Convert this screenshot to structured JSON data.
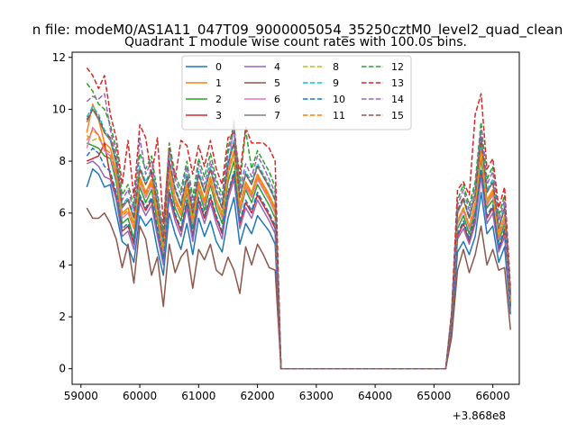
{
  "chart_data": {
    "type": "line",
    "suptitle": "n file: modeM0/AS1A11_047T09_9000005054_35250cztM0_level2_quad_clean",
    "title": "Quadrant 1 module wise count rates with 100.0s bins.",
    "xlabel": "",
    "ylabel": "",
    "x_offset_label": "+3.868e8",
    "xlim": [
      58850,
      66450
    ],
    "ylim": [
      -0.6,
      12.2
    ],
    "xticks": [
      59000,
      60000,
      61000,
      62000,
      63000,
      64000,
      65000,
      66000
    ],
    "yticks": [
      0,
      2,
      4,
      6,
      8,
      10,
      12
    ],
    "grid": false,
    "legend": {
      "placement": "top-center",
      "ncol": 4
    },
    "segment1_x": [
      59100,
      59200,
      59300,
      59400,
      59500,
      59600,
      59700,
      59800,
      59900,
      60000,
      60100,
      60200,
      60300,
      60400,
      60500,
      60600,
      60700,
      60800,
      60900,
      61000,
      61100,
      61200,
      61300,
      61400,
      61500,
      61600,
      61700,
      61800,
      61900,
      62000,
      62100,
      62200,
      62300
    ],
    "drop_x": [
      62400,
      65200
    ],
    "segment2_x": [
      65300,
      65400,
      65500,
      65600,
      65700,
      65800,
      65900,
      66000,
      66100,
      66200,
      66300
    ],
    "series": [
      {
        "name": "0",
        "color": "#1f77b4",
        "dash": false,
        "seg1": [
          7.0,
          7.7,
          7.5,
          7.0,
          7.1,
          6.0,
          4.9,
          4.7,
          4.1,
          5.9,
          5.5,
          5.8,
          4.6,
          3.6,
          6.0,
          5.2,
          4.6,
          5.6,
          4.4,
          5.8,
          5.1,
          5.7,
          4.9,
          4.5,
          5.8,
          6.6,
          4.8,
          5.6,
          5.2,
          5.9,
          5.6,
          5.3,
          4.8
        ],
        "seg2": [
          1.5,
          4.5,
          4.9,
          4.4,
          5.1,
          6.8,
          5.2,
          5.5,
          4.1,
          4.7,
          2.1
        ]
      },
      {
        "name": "1",
        "color": "#ff7f0e",
        "dash": false,
        "seg1": [
          9.1,
          10.2,
          9.6,
          8.7,
          8.5,
          7.6,
          6.0,
          6.2,
          5.6,
          7.4,
          6.8,
          7.3,
          6.1,
          4.6,
          7.7,
          6.6,
          6.1,
          7.1,
          5.8,
          7.2,
          6.5,
          7.4,
          6.5,
          6.0,
          7.6,
          8.4,
          6.3,
          7.2,
          6.8,
          7.5,
          7.1,
          6.7,
          6.2
        ],
        "seg2": [
          1.9,
          5.7,
          6.2,
          5.5,
          6.4,
          8.5,
          6.5,
          6.9,
          5.2,
          5.9,
          2.6
        ]
      },
      {
        "name": "2",
        "color": "#2ca02c",
        "dash": false,
        "seg1": [
          8.7,
          8.6,
          8.5,
          8.2,
          8.1,
          7.2,
          5.6,
          5.8,
          5.0,
          7.0,
          6.4,
          6.9,
          5.7,
          4.4,
          7.3,
          6.2,
          5.7,
          6.8,
          5.4,
          6.9,
          6.1,
          7.1,
          6.2,
          5.6,
          7.2,
          8.0,
          6.0,
          6.9,
          6.4,
          7.1,
          6.7,
          6.3,
          5.8
        ],
        "seg2": [
          1.8,
          5.4,
          5.9,
          5.2,
          6.1,
          8.1,
          6.2,
          6.5,
          4.9,
          5.6,
          2.5
        ]
      },
      {
        "name": "3",
        "color": "#d62728",
        "dash": false,
        "seg1": [
          8.0,
          8.1,
          8.2,
          8.7,
          7.4,
          6.7,
          5.3,
          5.5,
          4.8,
          6.6,
          6.1,
          6.5,
          5.3,
          4.1,
          6.8,
          5.9,
          5.3,
          6.4,
          5.1,
          6.5,
          5.8,
          6.6,
          5.8,
          5.2,
          6.7,
          7.5,
          5.6,
          6.4,
          6.0,
          6.7,
          6.3,
          5.9,
          5.4
        ],
        "seg2": [
          1.7,
          5.1,
          5.6,
          4.9,
          5.8,
          7.6,
          5.8,
          6.2,
          4.6,
          5.3,
          2.4
        ]
      },
      {
        "name": "4",
        "color": "#9467bd",
        "dash": false,
        "seg1": [
          7.9,
          8.0,
          7.8,
          7.4,
          7.3,
          6.5,
          5.1,
          5.3,
          4.6,
          6.4,
          5.9,
          6.3,
          5.1,
          4.0,
          6.6,
          5.7,
          5.1,
          6.2,
          4.9,
          6.3,
          5.6,
          6.4,
          5.6,
          5.0,
          6.5,
          7.3,
          5.4,
          6.2,
          5.8,
          6.5,
          6.1,
          5.7,
          5.2
        ],
        "seg2": [
          1.6,
          5.0,
          5.4,
          4.8,
          5.6,
          7.4,
          5.6,
          6.0,
          4.5,
          5.1,
          2.3
        ]
      },
      {
        "name": "5",
        "color": "#8c564b",
        "dash": false,
        "seg1": [
          6.2,
          5.8,
          5.8,
          6.0,
          5.6,
          5.0,
          3.9,
          4.8,
          3.3,
          5.5,
          5.0,
          3.6,
          4.3,
          2.4,
          4.8,
          3.7,
          4.3,
          4.6,
          3.1,
          4.6,
          4.2,
          4.8,
          3.8,
          3.6,
          4.3,
          3.8,
          2.9,
          4.7,
          4.0,
          4.8,
          4.4,
          3.9,
          3.8
        ],
        "seg2": [
          1.2,
          3.8,
          4.6,
          3.7,
          4.4,
          5.5,
          4.0,
          4.6,
          3.8,
          3.9,
          1.5
        ]
      },
      {
        "name": "6",
        "color": "#e377c2",
        "dash": false,
        "seg1": [
          8.5,
          9.3,
          9.0,
          8.4,
          8.2,
          7.4,
          5.8,
          6.0,
          5.4,
          7.2,
          6.6,
          7.1,
          5.9,
          4.5,
          7.5,
          6.4,
          5.9,
          6.9,
          5.6,
          7.0,
          6.3,
          7.2,
          6.4,
          5.8,
          7.4,
          9.6,
          6.1,
          7.0,
          6.6,
          7.3,
          6.9,
          6.5,
          6.0
        ],
        "seg2": [
          1.8,
          5.6,
          6.1,
          5.4,
          6.2,
          8.3,
          6.3,
          6.7,
          5.0,
          5.8,
          2.6
        ]
      },
      {
        "name": "7",
        "color": "#7f7f7f",
        "dash": false,
        "seg1": [
          9.5,
          10.0,
          9.6,
          9.1,
          8.8,
          7.9,
          6.2,
          6.5,
          5.8,
          7.7,
          7.1,
          7.6,
          6.3,
          4.9,
          8.0,
          6.9,
          6.3,
          7.4,
          6.0,
          7.5,
          6.8,
          7.7,
          6.8,
          6.2,
          7.9,
          8.7,
          6.6,
          7.5,
          7.1,
          7.8,
          7.4,
          7.0,
          6.5
        ],
        "seg2": [
          2.0,
          6.0,
          6.5,
          5.8,
          6.7,
          8.8,
          6.8,
          7.2,
          5.4,
          6.2,
          2.8
        ]
      },
      {
        "name": "8",
        "color": "#bcbd22",
        "dash": true,
        "seg1": [
          9.0,
          8.8,
          8.9,
          8.5,
          8.3,
          7.5,
          5.9,
          6.1,
          5.5,
          7.3,
          6.7,
          7.2,
          6.0,
          4.6,
          7.6,
          6.5,
          6.0,
          7.0,
          5.7,
          7.1,
          6.4,
          7.3,
          6.5,
          5.9,
          7.5,
          8.3,
          6.2,
          7.1,
          6.7,
          7.4,
          7.0,
          6.6,
          6.1
        ],
        "seg2": [
          1.9,
          5.7,
          6.2,
          5.5,
          6.3,
          8.4,
          6.4,
          6.8,
          5.1,
          5.9,
          2.6
        ]
      },
      {
        "name": "9",
        "color": "#17becf",
        "dash": true,
        "seg1": [
          9.7,
          10.1,
          9.8,
          9.2,
          8.9,
          8.0,
          6.3,
          6.6,
          5.9,
          7.8,
          7.2,
          7.7,
          6.4,
          5.0,
          8.1,
          7.0,
          6.4,
          7.5,
          6.1,
          7.6,
          6.9,
          7.8,
          6.9,
          6.3,
          8.0,
          8.8,
          6.7,
          7.6,
          7.2,
          7.9,
          7.5,
          7.1,
          6.6
        ],
        "seg2": [
          2.0,
          6.1,
          6.6,
          5.9,
          6.8,
          8.9,
          6.9,
          7.3,
          5.5,
          6.3,
          2.8
        ]
      },
      {
        "name": "10",
        "color": "#1f77b4",
        "dash": true,
        "seg1": [
          8.2,
          8.5,
          8.3,
          7.8,
          7.6,
          6.8,
          5.4,
          5.6,
          4.9,
          6.7,
          6.2,
          6.6,
          5.4,
          4.2,
          6.9,
          6.0,
          5.4,
          6.5,
          5.2,
          6.6,
          5.9,
          6.7,
          5.9,
          5.3,
          6.8,
          7.6,
          5.7,
          6.5,
          6.1,
          6.8,
          6.4,
          6.0,
          5.5
        ],
        "seg2": [
          1.7,
          5.2,
          5.7,
          5.0,
          5.9,
          7.7,
          5.9,
          6.3,
          4.7,
          5.4,
          2.4
        ]
      },
      {
        "name": "11",
        "color": "#ff7f0e",
        "dash": true,
        "seg1": [
          8.8,
          9.2,
          9.0,
          8.5,
          8.3,
          7.5,
          5.9,
          6.1,
          5.4,
          7.3,
          6.7,
          7.2,
          5.9,
          4.6,
          7.6,
          6.5,
          5.9,
          7.0,
          5.7,
          7.1,
          6.4,
          7.3,
          6.4,
          5.9,
          7.5,
          8.3,
          6.2,
          7.1,
          6.7,
          7.4,
          7.0,
          6.6,
          6.1
        ],
        "seg2": [
          1.9,
          5.7,
          6.2,
          5.5,
          6.3,
          8.4,
          6.4,
          6.8,
          5.1,
          5.9,
          2.6
        ]
      },
      {
        "name": "12",
        "color": "#2ca02c",
        "dash": true,
        "seg1": [
          11.0,
          10.7,
          10.2,
          10.0,
          9.4,
          8.5,
          6.7,
          7.1,
          6.3,
          8.3,
          7.7,
          8.2,
          6.8,
          5.3,
          8.7,
          7.5,
          6.9,
          8.0,
          6.6,
          8.1,
          7.4,
          8.3,
          7.3,
          6.7,
          8.5,
          9.4,
          7.1,
          9.2,
          7.7,
          8.4,
          8.0,
          7.6,
          7.0
        ],
        "seg2": [
          2.1,
          6.5,
          7.1,
          6.3,
          7.2,
          9.5,
          7.3,
          7.8,
          5.9,
          6.7,
          3.0
        ]
      },
      {
        "name": "13",
        "color": "#d62728",
        "dash": true,
        "seg1": [
          11.6,
          11.3,
          10.8,
          11.3,
          9.8,
          8.9,
          7.1,
          8.8,
          6.6,
          9.4,
          8.9,
          7.4,
          8.9,
          5.6,
          8.5,
          7.3,
          8.8,
          8.6,
          7.5,
          8.6,
          7.8,
          8.8,
          7.7,
          7.1,
          8.9,
          9.1,
          7.5,
          9.3,
          8.7,
          8.7,
          8.7,
          8.5,
          8.0
        ],
        "seg2": [
          2.2,
          6.9,
          7.2,
          6.7,
          9.8,
          10.6,
          7.7,
          8.1,
          6.2,
          7.0,
          3.1
        ]
      },
      {
        "name": "14",
        "color": "#9467bd",
        "dash": true,
        "seg1": [
          10.3,
          10.5,
          10.4,
          10.6,
          9.2,
          8.2,
          6.5,
          6.9,
          6.1,
          8.9,
          7.5,
          8.0,
          6.6,
          5.1,
          8.4,
          7.3,
          6.7,
          7.8,
          6.3,
          7.9,
          7.1,
          8.0,
          7.1,
          6.5,
          8.3,
          9.2,
          6.9,
          7.9,
          7.4,
          8.2,
          7.8,
          7.3,
          6.8
        ],
        "seg2": [
          2.1,
          6.3,
          6.9,
          6.1,
          7.0,
          9.2,
          7.1,
          7.6,
          5.7,
          6.5,
          2.9
        ]
      },
      {
        "name": "15",
        "color": "#8c564b",
        "dash": true,
        "seg1": [
          9.6,
          10.0,
          9.7,
          9.1,
          8.9,
          8.0,
          6.3,
          6.5,
          5.8,
          7.7,
          7.1,
          7.6,
          6.3,
          4.9,
          8.0,
          6.9,
          6.3,
          7.4,
          6.0,
          7.5,
          6.8,
          7.7,
          6.8,
          6.2,
          7.9,
          8.7,
          6.6,
          7.5,
          7.1,
          7.8,
          7.4,
          7.0,
          6.5
        ],
        "seg2": [
          2.0,
          6.1,
          6.6,
          5.8,
          6.7,
          8.9,
          6.8,
          7.2,
          5.4,
          6.2,
          2.8
        ]
      }
    ]
  }
}
